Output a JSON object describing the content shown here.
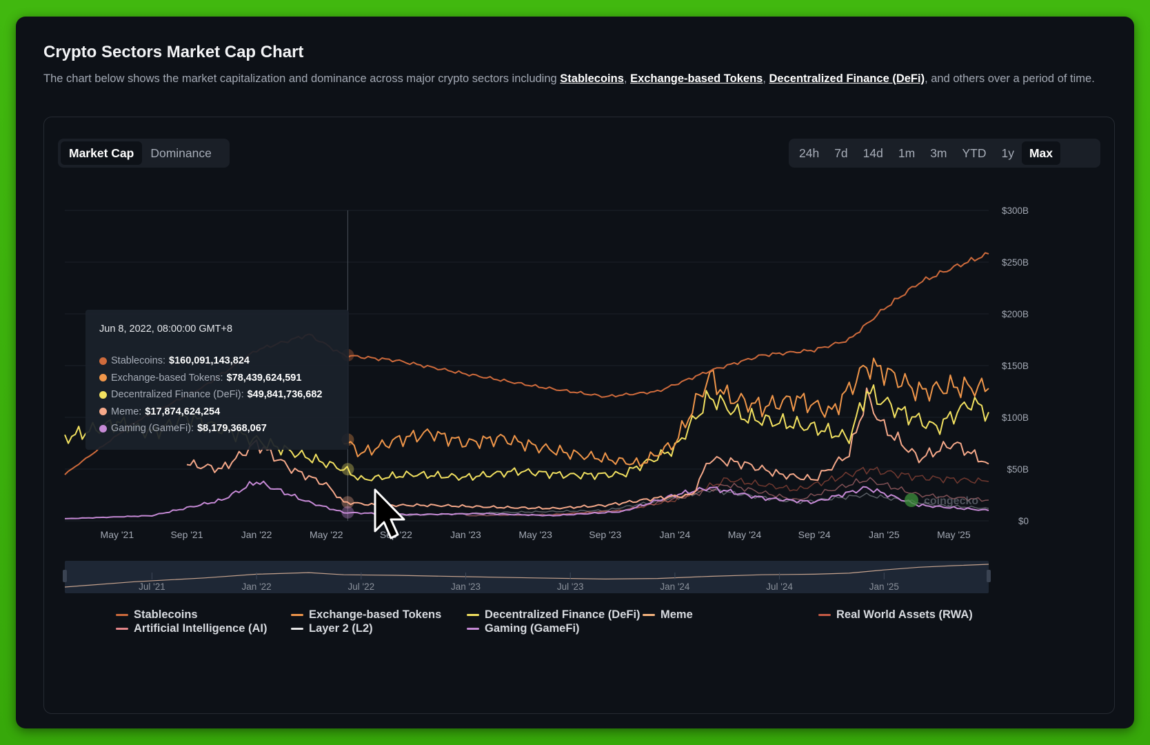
{
  "title": "Crypto Sectors Market Cap Chart",
  "description": {
    "prefix": "The chart below shows the market capitalization and dominance across major crypto sectors including ",
    "links": [
      "Stablecoins",
      "Exchange-based Tokens",
      "Decentralized Finance (DeFi)"
    ],
    "sep": ", ",
    "suffix": ", and others over a period of time."
  },
  "mode_tabs": [
    {
      "label": "Market Cap",
      "active": true
    },
    {
      "label": "Dominance",
      "active": false
    }
  ],
  "range_tabs": [
    {
      "label": "24h",
      "active": false
    },
    {
      "label": "7d",
      "active": false
    },
    {
      "label": "14d",
      "active": false
    },
    {
      "label": "1m",
      "active": false
    },
    {
      "label": "3m",
      "active": false
    },
    {
      "label": "YTD",
      "active": false
    },
    {
      "label": "1y",
      "active": false
    },
    {
      "label": "Max",
      "active": true
    }
  ],
  "watermark": "coingecko",
  "tooltip": {
    "date": "Jun 8, 2022, 08:00:00 GMT+8",
    "rows": [
      {
        "label": "Stablecoins:",
        "value": "$160,091,143,824",
        "color": "#cf6b3c"
      },
      {
        "label": "Exchange-based Tokens:",
        "value": "$78,439,624,591",
        "color": "#f0964a"
      },
      {
        "label": "Decentralized Finance (DeFi):",
        "value": "$49,841,736,682",
        "color": "#f2e160"
      },
      {
        "label": "Meme:",
        "value": "$17,874,624,254",
        "color": "#f6a98a"
      },
      {
        "label": "Gaming (GameFi):",
        "value": "$8,179,368,067",
        "color": "#c68ad6"
      }
    ]
  },
  "legend": [
    {
      "label": "Stablecoins",
      "color": "#cf6b3c"
    },
    {
      "label": "Exchange-based Tokens",
      "color": "#f0964a"
    },
    {
      "label": "Decentralized Finance (DeFi)",
      "color": "#f2e160"
    },
    {
      "label": "Meme",
      "color": "#f6b47e"
    },
    {
      "label": "Real World Assets (RWA)",
      "color": "#c75b45"
    },
    {
      "label": "Artificial Intelligence (AI)",
      "color": "#e4868a"
    },
    {
      "label": "Layer 2 (L2)",
      "color": "#e8e8e8"
    },
    {
      "label": "Gaming (GameFi)",
      "color": "#c68ad6"
    }
  ],
  "chart_data": {
    "type": "line",
    "y_unit": "USD billions",
    "yticks": [
      "$0",
      "$50B",
      "$100B",
      "$150B",
      "$200B",
      "$250B",
      "$300B"
    ],
    "ylim": [
      0,
      300
    ],
    "xticks": [
      "May '21",
      "Sep '21",
      "Jan '22",
      "May '22",
      "Sep '22",
      "Jan '23",
      "May '23",
      "Sep '23",
      "Jan '24",
      "May '24",
      "Sep '24",
      "Jan '25",
      "May '25"
    ],
    "xlim": [
      "2021-02",
      "2025-07"
    ],
    "navigator_ticks": [
      "Jul '21",
      "Jan '22",
      "Jul '22",
      "Jan '23",
      "Jul '23",
      "Jan '24",
      "Jul '24",
      "Jan '25"
    ],
    "hover_date": "2022-06-08",
    "grid": true,
    "legend_position": "bottom",
    "series": [
      {
        "name": "Stablecoins",
        "color": "#cf6b3c",
        "x": [
          "2021-02",
          "2021-06",
          "2021-10",
          "2022-01",
          "2022-04",
          "2022-06",
          "2022-09",
          "2023-01",
          "2023-05",
          "2023-09",
          "2023-12",
          "2024-03",
          "2024-06",
          "2024-09",
          "2024-11",
          "2025-01",
          "2025-03",
          "2025-05",
          "2025-07"
        ],
        "y": [
          45,
          95,
          130,
          165,
          180,
          160,
          155,
          142,
          130,
          120,
          125,
          145,
          160,
          165,
          175,
          205,
          230,
          245,
          258
        ]
      },
      {
        "name": "Exchange-based Tokens",
        "color": "#f0964a",
        "x": [
          "2022-06",
          "2022-07",
          "2022-09",
          "2022-11",
          "2023-01",
          "2023-03",
          "2023-05",
          "2023-07",
          "2023-09",
          "2023-11",
          "2024-01",
          "2024-03",
          "2024-04",
          "2024-06",
          "2024-08",
          "2024-10",
          "2024-12",
          "2025-01",
          "2025-03",
          "2025-05",
          "2025-07"
        ],
        "y": [
          78,
          65,
          78,
          85,
          75,
          80,
          72,
          65,
          60,
          55,
          75,
          140,
          120,
          110,
          118,
          105,
          150,
          145,
          125,
          130,
          128
        ]
      },
      {
        "name": "Decentralized Finance (DeFi)",
        "color": "#f2e160",
        "x": [
          "2021-02",
          "2021-05",
          "2021-07",
          "2021-09",
          "2022-06",
          "2022-07",
          "2022-10",
          "2023-01",
          "2023-04",
          "2023-07",
          "2023-10",
          "2024-01",
          "2024-03",
          "2024-05",
          "2024-07",
          "2024-09",
          "2024-11",
          "2024-12",
          "2025-02",
          "2025-04",
          "2025-06",
          "2025-07"
        ],
        "y": [
          80,
          95,
          85,
          100,
          50,
          40,
          45,
          42,
          48,
          44,
          45,
          70,
          120,
          100,
          95,
          90,
          80,
          125,
          105,
          90,
          115,
          105
        ]
      },
      {
        "name": "Meme",
        "color": "#f6a98a",
        "x": [
          "2021-09",
          "2021-11",
          "2022-01",
          "2022-03",
          "2022-05",
          "2022-06",
          "2022-08",
          "2022-11",
          "2023-03",
          "2023-06",
          "2023-09",
          "2023-12",
          "2024-02",
          "2024-03",
          "2024-05",
          "2024-07",
          "2024-09",
          "2024-11",
          "2024-12",
          "2025-01",
          "2025-03",
          "2025-05",
          "2025-07"
        ],
        "y": [
          55,
          50,
          75,
          50,
          35,
          18,
          15,
          15,
          13,
          12,
          15,
          22,
          25,
          60,
          55,
          45,
          40,
          65,
          120,
          90,
          60,
          75,
          55
        ]
      },
      {
        "name": "Gaming (GameFi)",
        "color": "#c68ad6",
        "x": [
          "2021-02",
          "2021-07",
          "2021-11",
          "2022-01",
          "2022-04",
          "2022-06",
          "2022-10",
          "2023-02",
          "2023-06",
          "2023-10",
          "2024-01",
          "2024-03",
          "2024-06",
          "2024-09",
          "2024-12",
          "2025-03",
          "2025-07"
        ],
        "y": [
          2,
          5,
          20,
          38,
          18,
          8,
          6,
          7,
          5,
          9,
          25,
          32,
          22,
          18,
          32,
          15,
          10
        ]
      },
      {
        "name": "Real World Assets (RWA)",
        "color": "#c75b45",
        "x": [
          "2023-06",
          "2023-10",
          "2024-01",
          "2024-04",
          "2024-08",
          "2024-12",
          "2025-03",
          "2025-07"
        ],
        "y": [
          6,
          10,
          20,
          40,
          30,
          50,
          42,
          38
        ]
      },
      {
        "name": "Artificial Intelligence (AI)",
        "color": "#e4868a",
        "x": [
          "2023-01",
          "2023-06",
          "2023-10",
          "2024-02",
          "2024-04",
          "2024-08",
          "2024-12",
          "2025-03",
          "2025-07"
        ],
        "y": [
          5,
          6,
          10,
          25,
          35,
          20,
          40,
          25,
          20
        ]
      },
      {
        "name": "Layer 2 (L2)",
        "color": "#9aa0a8",
        "x": [
          "2022-09",
          "2023-03",
          "2023-09",
          "2024-01",
          "2024-03",
          "2024-08",
          "2024-12",
          "2025-04",
          "2025-07"
        ],
        "y": [
          5,
          8,
          10,
          22,
          30,
          18,
          25,
          15,
          12
        ]
      }
    ]
  }
}
